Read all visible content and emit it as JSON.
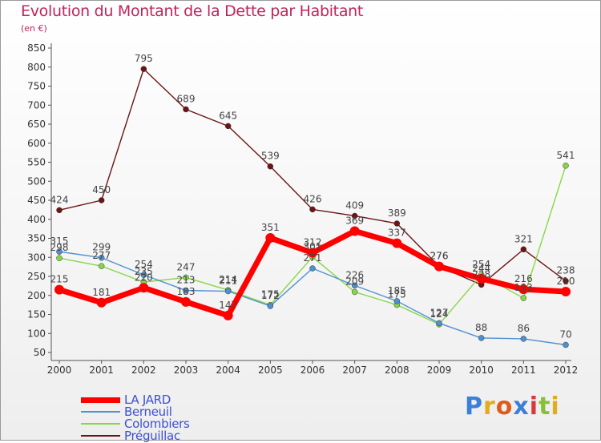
{
  "title": "Evolution du Montant de la Dette par Habitant",
  "subtitle": "(en €)",
  "logo": {
    "text": "Proxiti"
  },
  "chart_data": {
    "type": "line",
    "x": [
      "2000",
      "2001",
      "2002",
      "2003",
      "2004",
      "2005",
      "2006",
      "2007",
      "2008",
      "2009",
      "2010",
      "2011",
      "2012"
    ],
    "ylim": [
      50,
      850
    ],
    "yticks": [
      50,
      100,
      150,
      200,
      250,
      300,
      350,
      400,
      450,
      500,
      550,
      600,
      650,
      700,
      750,
      800,
      850
    ],
    "grid": false,
    "legend_position": "bottom-left",
    "series": [
      {
        "name": "LA JARD",
        "color": "#ff0000",
        "values": [
          215,
          181,
          220,
          183,
          147,
          351,
          312,
          369,
          337,
          276,
          244,
          216,
          210
        ]
      },
      {
        "name": "Berneuil",
        "color": "#4f91d0",
        "values": [
          315,
          299,
          254,
          213,
          211,
          172,
          271,
          226,
          185,
          127,
          88,
          86,
          70
        ]
      },
      {
        "name": "Colombiers",
        "color": "#88d648",
        "values": [
          298,
          277,
          235,
          247,
          214,
          175,
          301,
          209,
          175,
          124,
          254,
          193,
          541
        ]
      },
      {
        "name": "Préguillac",
        "color": "#6b1515",
        "values": [
          424,
          450,
          795,
          689,
          645,
          539,
          426,
          409,
          389,
          276,
          228,
          321,
          238
        ]
      }
    ]
  }
}
